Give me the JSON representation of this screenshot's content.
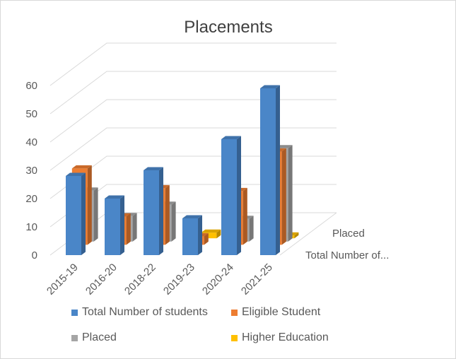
{
  "chart_data": {
    "type": "bar",
    "subtype": "3d-clustered-column",
    "title": "Placements",
    "categories": [
      "2015-19",
      "2016-20",
      "2018-22",
      "2019-23",
      "2020-24",
      "2021-25"
    ],
    "series": [
      {
        "name": "Total Number of  students",
        "color": "#4a86c8",
        "values": [
          28,
          20,
          30,
          13,
          41,
          59
        ]
      },
      {
        "name": "Eligible Student",
        "color": "#ed7d31",
        "values": [
          27,
          10,
          20,
          3,
          19,
          33
        ]
      },
      {
        "name": "Placed",
        "color": "#a5a5a5",
        "values": [
          18,
          9,
          13,
          0,
          8,
          33
        ]
      },
      {
        "name": "Higher Education",
        "color": "#ffc000",
        "values": [
          0,
          0,
          0,
          2,
          0,
          1
        ]
      }
    ],
    "y_ticks": [
      "0",
      "10",
      "20",
      "30",
      "40",
      "50",
      "60"
    ],
    "ylim": [
      0,
      60
    ],
    "depth_labels": [
      "Placed",
      "Total Number of..."
    ],
    "gridlines": true,
    "legend_position": "bottom"
  }
}
